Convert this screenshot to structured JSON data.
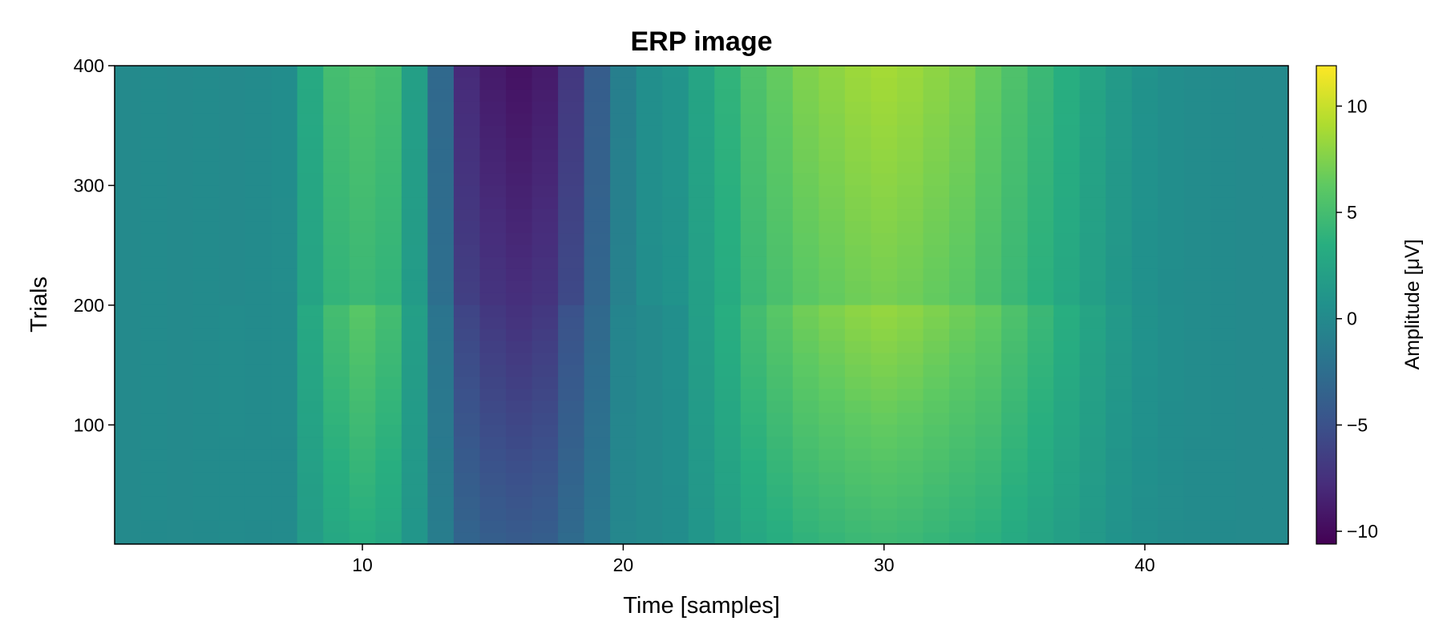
{
  "chart_data": {
    "type": "heatmap",
    "title": "ERP image",
    "xlabel": "Time [samples]",
    "ylabel": "Trials",
    "xlim": [
      0.5,
      45.5
    ],
    "ylim": [
      0.5,
      400
    ],
    "x_ticks": [
      10,
      20,
      30,
      40
    ],
    "x_tick_labels": [
      "10",
      "20",
      "30",
      "40"
    ],
    "y_ticks": [
      100,
      200,
      300,
      400
    ],
    "y_tick_labels": [
      "100",
      "200",
      "300",
      "400"
    ],
    "colormap": "viridis",
    "colorbar": {
      "label": "Amplitude [μV]",
      "range": [
        -10.6,
        11.9
      ],
      "ticks": [
        -10,
        -5,
        0,
        5,
        10
      ],
      "tick_labels": [
        "−10",
        "−5",
        "0",
        "5",
        "10"
      ]
    },
    "x": [
      1,
      2,
      3,
      4,
      5,
      6,
      7,
      8,
      9,
      10,
      11,
      12,
      13,
      14,
      15,
      16,
      17,
      18,
      19,
      20,
      21,
      22,
      23,
      24,
      25,
      26,
      27,
      28,
      29,
      30,
      31,
      32,
      33,
      34,
      35,
      36,
      37,
      38,
      39,
      40,
      41,
      42,
      43,
      44,
      45
    ],
    "trial_groups": [
      {
        "trials": [
          1,
          200
        ],
        "mean_amplitude": [
          0.0,
          0.1,
          0.0,
          0.1,
          0.2,
          0.1,
          0.2,
          3.0,
          5.0,
          6.0,
          5.0,
          2.0,
          -2.0,
          -6.0,
          -7.0,
          -7.5,
          -7.0,
          -5.0,
          -3.0,
          -0.5,
          0.0,
          0.5,
          2.0,
          3.5,
          5.0,
          6.0,
          7.0,
          7.5,
          8.0,
          8.3,
          8.0,
          7.5,
          7.0,
          6.5,
          5.5,
          4.5,
          3.5,
          2.5,
          1.5,
          0.8,
          0.4,
          0.2,
          0.1,
          0.0,
          0.0
        ]
      },
      {
        "trials": [
          201,
          400
        ],
        "mean_amplitude": [
          0.0,
          0.1,
          0.0,
          0.1,
          0.0,
          0.1,
          0.3,
          3.0,
          5.0,
          5.5,
          5.0,
          2.0,
          -3.0,
          -8.0,
          -9.0,
          -9.5,
          -9.0,
          -7.0,
          -4.0,
          -1.0,
          0.5,
          1.0,
          2.5,
          4.0,
          5.5,
          6.5,
          7.5,
          8.0,
          8.5,
          8.8,
          8.5,
          8.0,
          7.5,
          6.5,
          5.5,
          4.5,
          3.5,
          2.5,
          1.5,
          0.8,
          0.4,
          0.2,
          0.1,
          0.0,
          0.0
        ]
      }
    ],
    "grid": false
  }
}
